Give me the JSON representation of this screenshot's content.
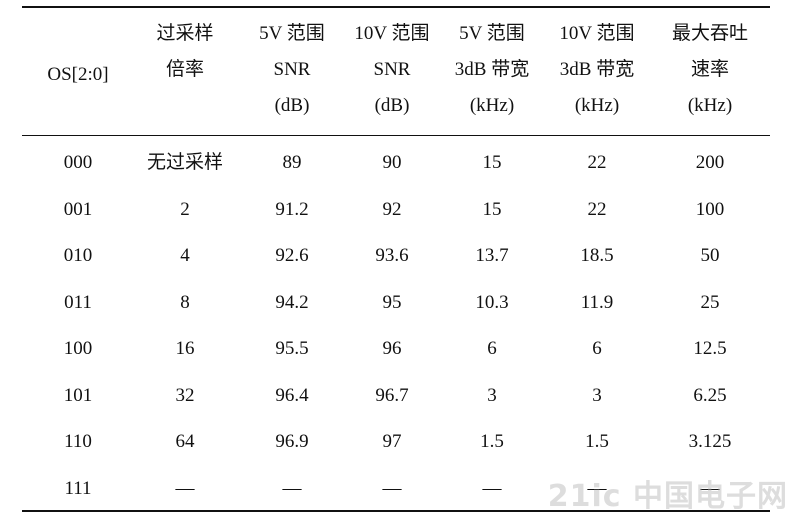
{
  "table": {
    "headers": [
      {
        "lines": [
          "OS[2:0]"
        ]
      },
      {
        "lines": [
          "过采样",
          "倍率"
        ]
      },
      {
        "lines": [
          "5V 范围",
          "SNR",
          "(dB)"
        ]
      },
      {
        "lines": [
          "10V 范围",
          "SNR",
          "(dB)"
        ]
      },
      {
        "lines": [
          "5V 范围",
          "3dB 带宽",
          "(kHz)"
        ]
      },
      {
        "lines": [
          "10V 范围",
          "3dB 带宽",
          "(kHz)"
        ]
      },
      {
        "lines": [
          "最大吞吐",
          "速率",
          "(kHz)"
        ]
      }
    ],
    "rows": [
      [
        "000",
        "无过采样",
        "89",
        "90",
        "15",
        "22",
        "200"
      ],
      [
        "001",
        "2",
        "91.2",
        "92",
        "15",
        "22",
        "100"
      ],
      [
        "010",
        "4",
        "92.6",
        "93.6",
        "13.7",
        "18.5",
        "50"
      ],
      [
        "011",
        "8",
        "94.2",
        "95",
        "10.3",
        "11.9",
        "25"
      ],
      [
        "100",
        "16",
        "95.5",
        "96",
        "6",
        "6",
        "12.5"
      ],
      [
        "101",
        "32",
        "96.4",
        "96.7",
        "3",
        "3",
        "6.25"
      ],
      [
        "110",
        "64",
        "96.9",
        "97",
        "1.5",
        "1.5",
        "3.125"
      ],
      [
        "111",
        "—",
        "—",
        "—",
        "—",
        "—",
        "—"
      ]
    ]
  },
  "watermark": "21ic 中国电子网"
}
